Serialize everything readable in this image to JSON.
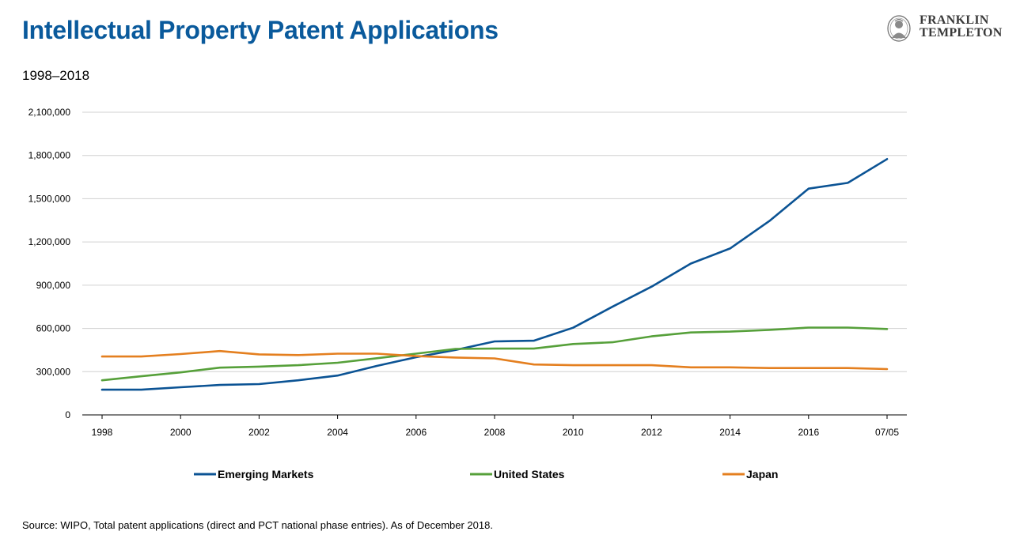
{
  "header": {
    "title": "Intellectual Property Patent Applications",
    "subtitle": "1998–2018"
  },
  "logo": {
    "line1": "FRANKLIN",
    "line2": "TEMPLETON"
  },
  "footer": {
    "source": "Source: WIPO, Total patent applications (direct and PCT national phase entries). As of December 2018."
  },
  "chart_data": {
    "type": "line",
    "x": [
      1998,
      1999,
      2000,
      2001,
      2002,
      2003,
      2004,
      2005,
      2006,
      2007,
      2008,
      2009,
      2010,
      2011,
      2012,
      2013,
      2014,
      2015,
      2016,
      2017,
      2018
    ],
    "x_tick_labels": [
      "1998",
      "2000",
      "2002",
      "2004",
      "2006",
      "2008",
      "2010",
      "2012",
      "2014",
      "2016",
      "07/05"
    ],
    "x_tick_positions": [
      1998,
      2000,
      2002,
      2004,
      2006,
      2008,
      2010,
      2012,
      2014,
      2016,
      2018
    ],
    "ylim": [
      0,
      2100000
    ],
    "y_ticks": [
      0,
      300000,
      600000,
      900000,
      1200000,
      1500000,
      1800000,
      2100000
    ],
    "y_tick_labels": [
      "0",
      "300,000",
      "600,000",
      "900,000",
      "1,200,000",
      "1,500,000",
      "1,800,000",
      "2,100,000"
    ],
    "grid": "horizontal",
    "legend_position": "bottom",
    "series": [
      {
        "name": "Emerging Markets",
        "color": "#0b5394",
        "values": [
          175000,
          175000,
          192000,
          208000,
          214000,
          240000,
          273000,
          340000,
          400000,
          450000,
          510000,
          515000,
          605000,
          750000,
          890000,
          1050000,
          1155000,
          1345000,
          1570000,
          1610000,
          1775000
        ]
      },
      {
        "name": "United States",
        "color": "#56a03a",
        "values": [
          240000,
          268000,
          295000,
          328000,
          335000,
          345000,
          362000,
          393000,
          425000,
          458000,
          460000,
          460000,
          492000,
          504000,
          545000,
          572000,
          578000,
          590000,
          606000,
          606000,
          596000
        ]
      },
      {
        "name": "Japan",
        "color": "#e47f1f",
        "values": [
          405000,
          405000,
          422000,
          443000,
          420000,
          415000,
          425000,
          425000,
          408000,
          398000,
          392000,
          350000,
          345000,
          345000,
          345000,
          330000,
          330000,
          325000,
          325000,
          325000,
          318000
        ]
      }
    ]
  }
}
